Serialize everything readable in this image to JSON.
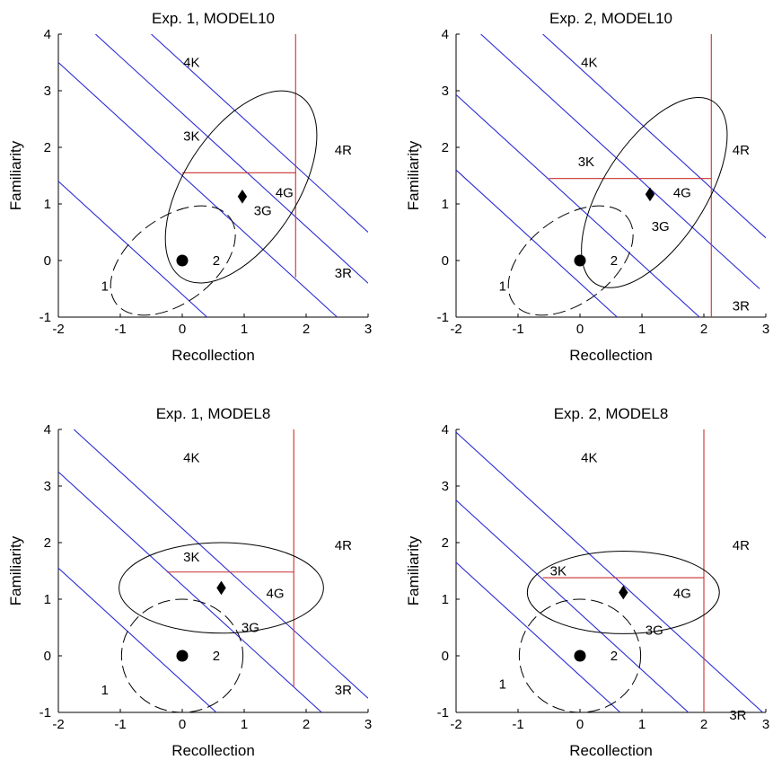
{
  "chart_data": [
    {
      "type": "scatter",
      "title": "Exp. 1, MODEL10",
      "xlabel": "Recollection",
      "ylabel": "Familiarity",
      "xlim": [
        -2,
        3
      ],
      "ylim": [
        -1,
        4
      ],
      "xticks": [
        "-2",
        "-1",
        "0",
        "1",
        "2",
        "3"
      ],
      "yticks": [
        "-1",
        "0",
        "1",
        "2",
        "3",
        "4"
      ],
      "grid": false,
      "points": [
        {
          "marker": "circle",
          "x": 0,
          "y": 0
        },
        {
          "marker": "diamond",
          "x": 0.97,
          "y": 1.13
        }
      ],
      "ellipses": [
        {
          "style": "dashed",
          "cx": -0.15,
          "cy": 0.0,
          "rx": 1.15,
          "ry": 0.75,
          "angle": 37
        },
        {
          "style": "solid",
          "cx": 0.95,
          "cy": 1.3,
          "rx": 1.75,
          "ry": 1.0,
          "angle": 57
        }
      ],
      "criteria_diagonal": [
        {
          "x1": -2.0,
          "y1": 1.4,
          "x2": 0.4,
          "y2": -1.0
        },
        {
          "x1": -2.0,
          "y1": 3.5,
          "x2": 2.5,
          "y2": -1.0
        },
        {
          "x1": -1.4,
          "y1": 4.0,
          "x2": 3.0,
          "y2": -0.4
        },
        {
          "x1": -0.5,
          "y1": 4.0,
          "x2": 3.0,
          "y2": 0.5
        }
      ],
      "criteria_red": {
        "vertical_x": 1.83,
        "vertical_y": [
          -0.3,
          4.0
        ],
        "horizontal_y": 1.55,
        "horizontal_x": [
          0.0,
          1.83
        ]
      },
      "region_labels": [
        {
          "text": "4K",
          "x": 0.15,
          "y": 3.5
        },
        {
          "text": "3K",
          "x": 0.15,
          "y": 2.2
        },
        {
          "text": "4R",
          "x": 2.6,
          "y": 1.95
        },
        {
          "text": "4G",
          "x": 1.65,
          "y": 1.2
        },
        {
          "text": "3G",
          "x": 1.3,
          "y": 0.88
        },
        {
          "text": "2",
          "x": 0.55,
          "y": 0.0
        },
        {
          "text": "3R",
          "x": 2.6,
          "y": -0.22
        },
        {
          "text": "1",
          "x": -1.25,
          "y": -0.45
        }
      ]
    },
    {
      "type": "scatter",
      "title": "Exp. 2, MODEL10",
      "xlabel": "Recollection",
      "ylabel": "Familiarity",
      "xlim": [
        -2,
        3
      ],
      "ylim": [
        -1,
        4
      ],
      "xticks": [
        "-2",
        "-1",
        "0",
        "1",
        "2",
        "3"
      ],
      "yticks": [
        "-1",
        "0",
        "1",
        "2",
        "3",
        "4"
      ],
      "grid": false,
      "points": [
        {
          "marker": "circle",
          "x": 0,
          "y": 0
        },
        {
          "marker": "diamond",
          "x": 1.13,
          "y": 1.17
        }
      ],
      "ellipses": [
        {
          "style": "dashed",
          "cx": -0.15,
          "cy": 0.0,
          "rx": 1.15,
          "ry": 0.75,
          "angle": 37
        },
        {
          "style": "solid",
          "cx": 1.2,
          "cy": 1.2,
          "rx": 1.75,
          "ry": 0.9,
          "angle": 57
        }
      ],
      "criteria_diagonal": [
        {
          "x1": -2.0,
          "y1": 1.6,
          "x2": 0.6,
          "y2": -1.0
        },
        {
          "x1": -2.0,
          "y1": 2.93,
          "x2": 1.93,
          "y2": -1.0
        },
        {
          "x1": -1.6,
          "y1": 4.0,
          "x2": 2.9,
          "y2": -0.5
        },
        {
          "x1": -0.6,
          "y1": 4.0,
          "x2": 3.0,
          "y2": 0.4
        }
      ],
      "criteria_red": {
        "vertical_x": 2.12,
        "vertical_y": [
          -1.0,
          4.0
        ],
        "horizontal_y": 1.45,
        "horizontal_x": [
          -0.5,
          2.12
        ]
      },
      "region_labels": [
        {
          "text": "4K",
          "x": 0.15,
          "y": 3.5
        },
        {
          "text": "3K",
          "x": 0.1,
          "y": 1.75
        },
        {
          "text": "4R",
          "x": 2.6,
          "y": 1.95
        },
        {
          "text": "4G",
          "x": 1.65,
          "y": 1.2
        },
        {
          "text": "3G",
          "x": 1.3,
          "y": 0.6
        },
        {
          "text": "2",
          "x": 0.55,
          "y": 0.0
        },
        {
          "text": "3R",
          "x": 2.6,
          "y": -0.8
        },
        {
          "text": "1",
          "x": -1.25,
          "y": -0.45
        }
      ]
    },
    {
      "type": "scatter",
      "title": "Exp. 1, MODEL8",
      "xlabel": "Recollection",
      "ylabel": "Familiarity",
      "xlim": [
        -2,
        3
      ],
      "ylim": [
        -1,
        4
      ],
      "xticks": [
        "-2",
        "-1",
        "0",
        "1",
        "2",
        "3"
      ],
      "yticks": [
        "-1",
        "0",
        "1",
        "2",
        "3",
        "4"
      ],
      "grid": false,
      "points": [
        {
          "marker": "circle",
          "x": 0,
          "y": 0
        },
        {
          "marker": "diamond",
          "x": 0.63,
          "y": 1.2
        }
      ],
      "ellipses": [
        {
          "style": "dashed",
          "cx": 0.0,
          "cy": 0.0,
          "rx": 0.98,
          "ry": 1.0,
          "angle": 0
        },
        {
          "style": "solid",
          "cx": 0.63,
          "cy": 1.2,
          "rx": 1.65,
          "ry": 0.8,
          "angle": 0
        }
      ],
      "criteria_diagonal": [
        {
          "x1": -2.0,
          "y1": 1.55,
          "x2": 0.55,
          "y2": -1.0
        },
        {
          "x1": -2.0,
          "y1": 3.25,
          "x2": 2.25,
          "y2": -1.0
        },
        {
          "x1": -1.75,
          "y1": 4.0,
          "x2": 3.0,
          "y2": -0.75
        }
      ],
      "criteria_red": {
        "vertical_x": 1.8,
        "vertical_y": [
          -0.55,
          4.0
        ],
        "horizontal_y": 1.48,
        "horizontal_x": [
          -0.25,
          1.8
        ]
      },
      "region_labels": [
        {
          "text": "4K",
          "x": 0.15,
          "y": 3.5
        },
        {
          "text": "3K",
          "x": 0.15,
          "y": 1.75
        },
        {
          "text": "4R",
          "x": 2.6,
          "y": 1.95
        },
        {
          "text": "4G",
          "x": 1.5,
          "y": 1.1
        },
        {
          "text": "3G",
          "x": 1.1,
          "y": 0.5
        },
        {
          "text": "2",
          "x": 0.55,
          "y": 0.0
        },
        {
          "text": "3R",
          "x": 2.6,
          "y": -0.6
        },
        {
          "text": "1",
          "x": -1.25,
          "y": -0.6
        }
      ]
    },
    {
      "type": "scatter",
      "title": "Exp. 2, MODEL8",
      "xlabel": "Recollection",
      "ylabel": "Familiarity",
      "xlim": [
        -2,
        3
      ],
      "ylim": [
        -1,
        4
      ],
      "xticks": [
        "-2",
        "-1",
        "0",
        "1",
        "2",
        "3"
      ],
      "yticks": [
        "-1",
        "0",
        "1",
        "2",
        "3",
        "4"
      ],
      "grid": false,
      "points": [
        {
          "marker": "circle",
          "x": 0,
          "y": 0
        },
        {
          "marker": "diamond",
          "x": 0.7,
          "y": 1.12
        }
      ],
      "ellipses": [
        {
          "style": "dashed",
          "cx": 0.0,
          "cy": 0.0,
          "rx": 0.98,
          "ry": 1.0,
          "angle": 0
        },
        {
          "style": "solid",
          "cx": 0.7,
          "cy": 1.12,
          "rx": 1.55,
          "ry": 0.73,
          "angle": 0
        }
      ],
      "criteria_diagonal": [
        {
          "x1": -2.0,
          "y1": 1.65,
          "x2": 0.65,
          "y2": -1.0
        },
        {
          "x1": -2.0,
          "y1": 2.75,
          "x2": 1.75,
          "y2": -1.0
        },
        {
          "x1": -2.0,
          "y1": 3.95,
          "x2": 2.95,
          "y2": -1.0
        }
      ],
      "criteria_red": {
        "vertical_x": 2.0,
        "vertical_y": [
          -1.0,
          4.0
        ],
        "horizontal_y": 1.38,
        "horizontal_x": [
          -0.6,
          2.0
        ]
      },
      "region_labels": [
        {
          "text": "4K",
          "x": 0.15,
          "y": 3.5
        },
        {
          "text": "3K",
          "x": -0.35,
          "y": 1.5
        },
        {
          "text": "4R",
          "x": 2.6,
          "y": 1.95
        },
        {
          "text": "4G",
          "x": 1.65,
          "y": 1.1
        },
        {
          "text": "3G",
          "x": 1.2,
          "y": 0.45
        },
        {
          "text": "2",
          "x": 0.55,
          "y": 0.0
        },
        {
          "text": "3R",
          "x": 2.55,
          "y": -1.05
        },
        {
          "text": "1",
          "x": -1.25,
          "y": -0.5
        }
      ]
    }
  ]
}
